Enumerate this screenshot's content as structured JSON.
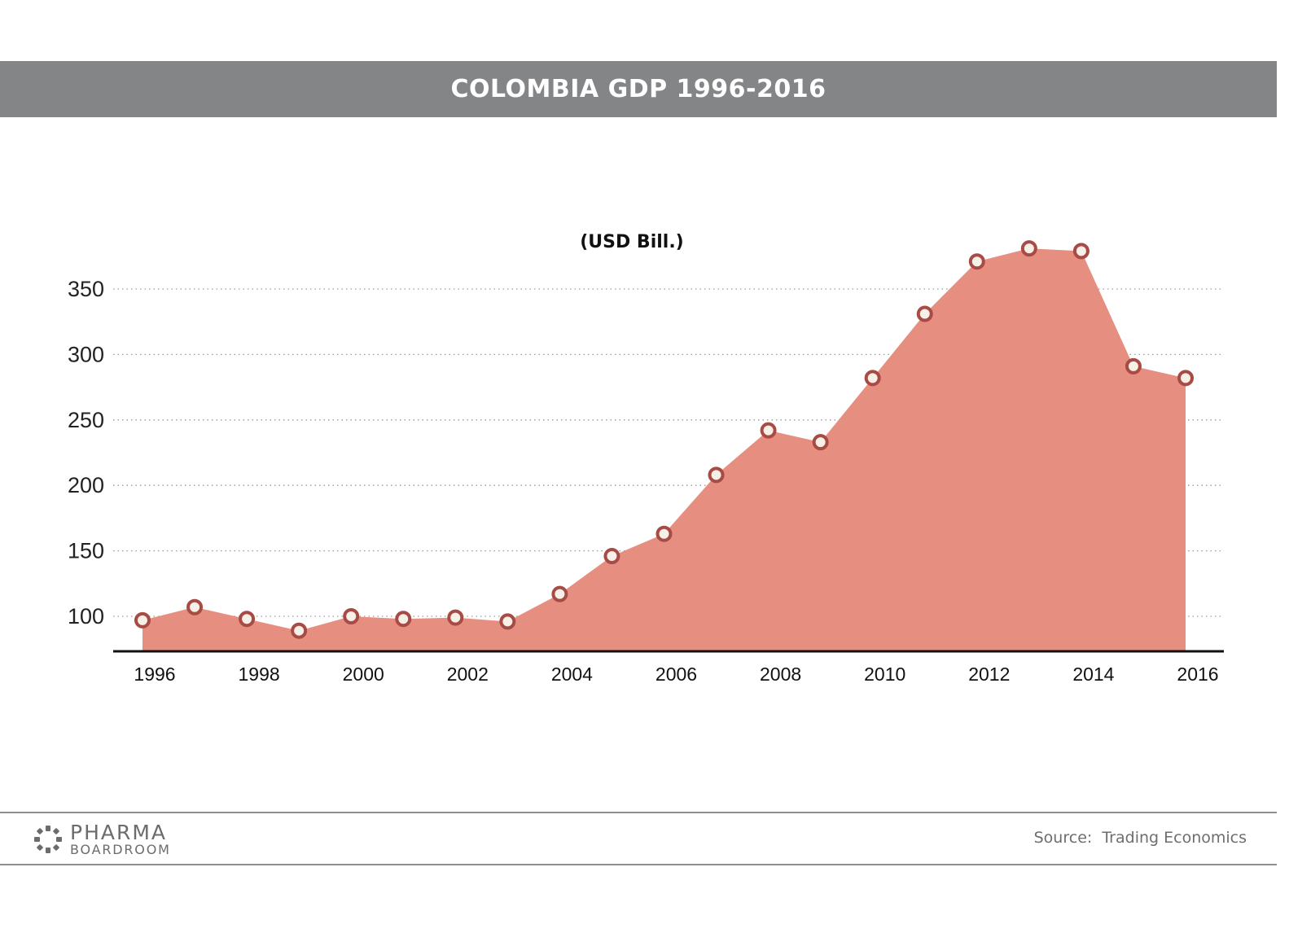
{
  "title": "COLOMBIA GDP 1996-2016",
  "chart_data": {
    "type": "area",
    "title": "COLOMBIA GDP 1996-2016",
    "unit_label": "(USD Bill.)",
    "xlabel": "",
    "ylabel": "",
    "x": [
      1996,
      1997,
      1998,
      1999,
      2000,
      2001,
      2002,
      2003,
      2004,
      2005,
      2006,
      2007,
      2008,
      2009,
      2010,
      2011,
      2012,
      2013,
      2014,
      2015,
      2016
    ],
    "series": [
      {
        "values": [
          97,
          107,
          98,
          89,
          100,
          98,
          99,
          96,
          117,
          146,
          163,
          208,
          242,
          233,
          282,
          331,
          371,
          381,
          379,
          291,
          282
        ]
      }
    ],
    "x_ticks": [
      "1996",
      "1998",
      "2000",
      "2002",
      "2004",
      "2006",
      "2008",
      "2010",
      "2012",
      "2014",
      "2016"
    ],
    "y_ticks": [
      "100",
      "150",
      "200",
      "250",
      "300",
      "350"
    ],
    "ylim": [
      72,
      390
    ],
    "grid": "horizontal-dotted",
    "colors": {
      "fill": "#e68f80",
      "marker_stroke": "#a84a45",
      "marker_fill": "#f7f0e6",
      "title_bar": "#848587"
    }
  },
  "footer": {
    "logo_line1": "PHARMA",
    "logo_line2": "BOARDROOM",
    "source": "Source:  Trading Economics"
  }
}
